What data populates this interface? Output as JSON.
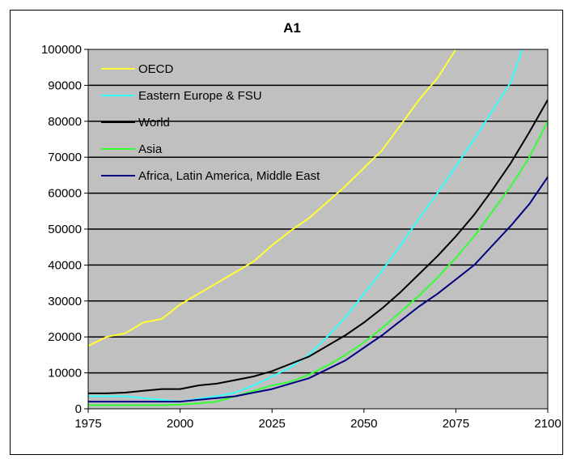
{
  "chart_data": {
    "type": "line",
    "title": "A1",
    "xlabel": "",
    "ylabel": "",
    "xlim": [
      1975,
      2100
    ],
    "ylim": [
      0,
      100000
    ],
    "x_ticks": [
      1975,
      2000,
      2025,
      2050,
      2075,
      2100
    ],
    "y_ticks": [
      0,
      10000,
      20000,
      30000,
      40000,
      50000,
      60000,
      70000,
      80000,
      90000,
      100000
    ],
    "y_tick_labels": [
      "0",
      "10000",
      "20000",
      "30000",
      "40000",
      "50000",
      "60000",
      "70000",
      "80000",
      "90000",
      "100000"
    ],
    "x_tick_labels": [
      "1975",
      "2000",
      "2025",
      "2050",
      "2075",
      "2100"
    ],
    "grid": "horizontal",
    "legend_position": "top-left",
    "plot_background": "#c0c0c0",
    "series": [
      {
        "name": "OECD",
        "color": "#ffff33",
        "x": [
          1975,
          1980,
          1985,
          1990,
          1995,
          2000,
          2005,
          2010,
          2015,
          2020,
          2025,
          2030,
          2035,
          2040,
          2045,
          2050,
          2055,
          2060,
          2065,
          2070,
          2075
        ],
        "y": [
          17500,
          20000,
          21000,
          24000,
          25000,
          29000,
          32000,
          35000,
          38000,
          41000,
          45500,
          49500,
          53000,
          57500,
          62000,
          67000,
          72000,
          79000,
          86000,
          92000,
          100000
        ]
      },
      {
        "name": "Eastern Europe & FSU",
        "color": "#33ffff",
        "x": [
          1975,
          1980,
          1985,
          1990,
          1995,
          2000,
          2005,
          2010,
          2015,
          2020,
          2025,
          2030,
          2035,
          2040,
          2045,
          2050,
          2055,
          2060,
          2065,
          2070,
          2075,
          2080,
          2085,
          2090,
          2093
        ],
        "y": [
          3500,
          3500,
          3500,
          3000,
          2500,
          2000,
          2800,
          3500,
          4500,
          6500,
          9000,
          11500,
          15000,
          20000,
          25500,
          32000,
          38500,
          45500,
          53000,
          60000,
          67500,
          75000,
          83000,
          91000,
          100000
        ]
      },
      {
        "name": "World",
        "color": "#000000",
        "x": [
          1975,
          1980,
          1985,
          1990,
          1995,
          2000,
          2005,
          2010,
          2015,
          2020,
          2025,
          2030,
          2035,
          2040,
          2045,
          2050,
          2055,
          2060,
          2065,
          2070,
          2075,
          2080,
          2085,
          2090,
          2095,
          2100
        ],
        "y": [
          4300,
          4300,
          4500,
          5000,
          5500,
          5500,
          6500,
          7000,
          8000,
          9000,
          10500,
          12500,
          14500,
          17500,
          20500,
          24000,
          28000,
          32500,
          37500,
          42500,
          48000,
          54000,
          61000,
          68500,
          77000,
          86000
        ]
      },
      {
        "name": "Asia",
        "color": "#33ff33",
        "x": [
          1975,
          1980,
          1985,
          1990,
          1995,
          2000,
          2005,
          2010,
          2015,
          2020,
          2025,
          2030,
          2035,
          2040,
          2045,
          2050,
          2055,
          2060,
          2065,
          2070,
          2075,
          2080,
          2085,
          2090,
          2095,
          2100
        ],
        "y": [
          1000,
          1000,
          1000,
          1000,
          1000,
          1200,
          1500,
          2000,
          3500,
          5000,
          6500,
          7500,
          9500,
          12000,
          15000,
          18500,
          22500,
          27000,
          31500,
          36500,
          42000,
          48000,
          55000,
          62000,
          70000,
          80000
        ]
      },
      {
        "name": "Africa, Latin America, Middle East",
        "color": "#000080",
        "x": [
          1975,
          1980,
          1985,
          1990,
          1995,
          2000,
          2005,
          2010,
          2015,
          2020,
          2025,
          2030,
          2035,
          2040,
          2045,
          2050,
          2055,
          2060,
          2065,
          2070,
          2075,
          2080,
          2085,
          2090,
          2095,
          2100
        ],
        "y": [
          2000,
          2000,
          2000,
          2000,
          2000,
          2000,
          2500,
          3000,
          3500,
          4500,
          5500,
          7000,
          8500,
          11000,
          13500,
          17000,
          20500,
          24500,
          28500,
          32000,
          36000,
          40000,
          45500,
          51000,
          57000,
          64500
        ]
      }
    ]
  }
}
